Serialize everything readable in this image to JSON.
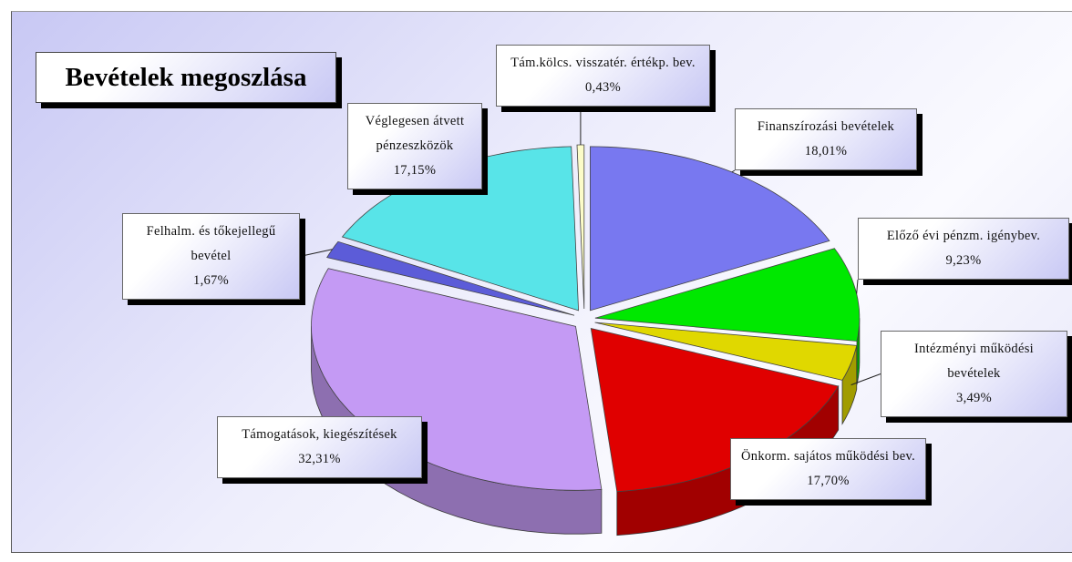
{
  "chart_data": {
    "type": "pie",
    "title": "Bevételek megoszlása",
    "categories": [
      "Finanszírozási bevételek",
      "Előző évi pénzm. igénybev.",
      "Intézményi működési bevételek",
      "Önkorm. sajátos működési bev.",
      "Támogatások, kiegészítések",
      "Felhalm. és tőkejellegű bevétel",
      "Véglegesen átvett pénzeszközök",
      "Tám.kölcs. visszatér. értékp. bev."
    ],
    "values": [
      18.01,
      9.23,
      3.49,
      17.7,
      32.31,
      1.67,
      17.15,
      0.43
    ],
    "value_labels": [
      "18,01%",
      "9,23%",
      "3,49%",
      "17,70%",
      "32,31%",
      "1,67%",
      "17,15%",
      "0,43%"
    ],
    "colors": [
      "#7878f0",
      "#00e800",
      "#e0d800",
      "#e00000",
      "#c49af4",
      "#5c5cd8",
      "#58e4e8",
      "#fcfcc8"
    ]
  }
}
